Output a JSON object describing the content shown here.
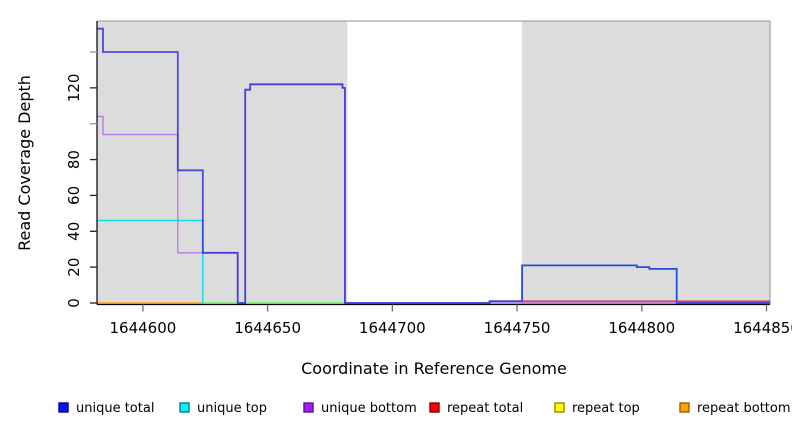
{
  "figure": {
    "background": "#ffffff",
    "plot_background_shaded": "#dcdcdc",
    "box_border_color": "#a6a6a6",
    "axis_color": "#000000",
    "minor_tick_color": "#999999",
    "tick_color": "#6e6e6e"
  },
  "titles": {
    "x_axis": "Coordinate in Reference Genome",
    "y_axis": "Read Coverage Depth"
  },
  "chart_data": {
    "type": "line",
    "subtype": "step-coverage",
    "title": "",
    "xlabel": "Coordinate in Reference Genome",
    "ylabel": "Read Coverage Depth",
    "xlim": [
      1644581.6,
      1644851.4
    ],
    "ylim": [
      0,
      158
    ],
    "grid": false,
    "legend_position": "bottom",
    "x_ticks": [
      {
        "value": 1644600,
        "label": "1644600"
      },
      {
        "value": 1644650,
        "label": "1644650"
      },
      {
        "value": 1644700,
        "label": "1644700"
      },
      {
        "value": 1644750,
        "label": "1644750"
      },
      {
        "value": 1644800,
        "label": "1644800"
      },
      {
        "value": 1644850,
        "label": "1644850"
      }
    ],
    "y_ticks": [
      {
        "value": 0,
        "label": "0"
      },
      {
        "value": 20,
        "label": "20"
      },
      {
        "value": 40,
        "label": "40"
      },
      {
        "value": 60,
        "label": "60"
      },
      {
        "value": 80,
        "label": "80"
      },
      {
        "value": 100,
        "label": ""
      },
      {
        "value": 120,
        "label": "120"
      },
      {
        "value": 140,
        "label": ""
      }
    ],
    "shaded_regions": [
      {
        "from": 1644581.6,
        "to": 1644682
      },
      {
        "from": 1644752,
        "to": 1644851.4
      }
    ],
    "series": [
      {
        "name": "repeat bottom",
        "color": "#ff9e15",
        "width": 1.6,
        "opacity": 1,
        "points": [
          [
            1644581.6,
            0
          ],
          [
            1644624,
            0
          ]
        ]
      },
      {
        "name": "unique top",
        "color": "#00dfee",
        "width": 1.4,
        "opacity": 1,
        "points": [
          [
            1644581.6,
            46
          ],
          [
            1644624,
            0
          ],
          [
            1644739,
            1
          ],
          [
            1644752,
            21
          ],
          [
            1644798,
            20
          ],
          [
            1644803,
            19
          ],
          [
            1644814,
            0
          ],
          [
            1644851.4,
            0
          ]
        ]
      },
      {
        "name": "repeat top",
        "color": "#ffff00",
        "width": 1.5,
        "opacity": 0.55,
        "points": [
          [
            1644624,
            0
          ],
          [
            1644682,
            0
          ]
        ]
      },
      {
        "name": "unique bottom",
        "color": "#bd7ae6",
        "width": 1.4,
        "opacity": 1,
        "points": [
          [
            1644581.6,
            104
          ],
          [
            1644584,
            94
          ],
          [
            1644614,
            28
          ],
          [
            1644638,
            0
          ],
          [
            1644641,
            119
          ],
          [
            1644643,
            122
          ],
          [
            1644680,
            120
          ],
          [
            1644681,
            0
          ],
          [
            1644851.4,
            0
          ]
        ]
      },
      {
        "name": "unique total",
        "color": "#2b2bdc",
        "width": 1.8,
        "opacity": 0.82,
        "points": [
          [
            1644581.6,
            153
          ],
          [
            1644584,
            140
          ],
          [
            1644614,
            74
          ],
          [
            1644624,
            28
          ],
          [
            1644638,
            0
          ],
          [
            1644641,
            119
          ],
          [
            1644643,
            122
          ],
          [
            1644680,
            120
          ],
          [
            1644681,
            0
          ],
          [
            1644739,
            1
          ],
          [
            1644752,
            21
          ],
          [
            1644798,
            20
          ],
          [
            1644803,
            19
          ],
          [
            1644814,
            0
          ],
          [
            1644851.4,
            0
          ]
        ]
      },
      {
        "name": "repeat total",
        "color": "#e4263c",
        "width": 1.4,
        "opacity": 1,
        "points": [
          [
            1644752,
            1
          ],
          [
            1644851.4,
            1
          ]
        ]
      }
    ]
  },
  "legend": {
    "items": [
      {
        "label": "unique total",
        "fill": "#1010f0",
        "border": "#000090"
      },
      {
        "label": "unique top",
        "fill": "#00f6ff",
        "border": "#007f8c"
      },
      {
        "label": "unique bottom",
        "fill": "#a21df0",
        "border": "#5c0a9e"
      },
      {
        "label": "repeat total",
        "fill": "#ff0000",
        "border": "#8c0000"
      },
      {
        "label": "repeat top",
        "fill": "#ffff00",
        "border": "#8c8c00"
      },
      {
        "label": "repeat bottom",
        "fill": "#ffa300",
        "border": "#a05e00"
      }
    ]
  }
}
